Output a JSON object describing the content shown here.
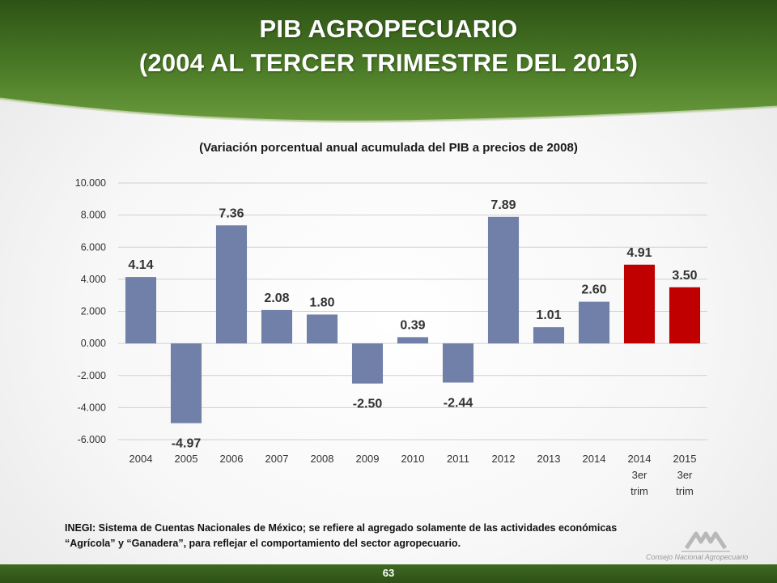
{
  "slide": {
    "title_line_1": "PIB AGROPECUARIO",
    "title_line_2": "(2004 AL TERCER TRIMESTRE DEL 2015)",
    "source_line_1": "INEGI: Sistema de Cuentas Nacionales de México; se refiere al agregado solamente de las actividades económicas",
    "source_line_2": "“Agrícola” y “Ganadera”, para reflejar el comportamiento del sector agropecuario.",
    "page_number": "63",
    "header_color": "#3d6b1f",
    "logo_icon": "consejo-logo-icon",
    "logo_text": "Consejo Nacional Agropecuario"
  },
  "chart_data": {
    "type": "bar",
    "title": "(Variación porcentual anual acumulada del PIB a precios de 2008)",
    "xlabel": "",
    "ylabel": "",
    "categories": [
      [
        "2004"
      ],
      [
        "2005"
      ],
      [
        "2006"
      ],
      [
        "2007"
      ],
      [
        "2008"
      ],
      [
        "2009"
      ],
      [
        "2010"
      ],
      [
        "2011"
      ],
      [
        "2012"
      ],
      [
        "2013"
      ],
      [
        "2014"
      ],
      [
        "2014",
        "3er",
        "trim"
      ],
      [
        "2015",
        "3er",
        "trim"
      ]
    ],
    "values": [
      4.14,
      -4.97,
      7.36,
      2.08,
      1.8,
      -2.5,
      0.39,
      -2.44,
      7.89,
      1.01,
      2.6,
      4.91,
      3.5
    ],
    "value_labels": [
      "4.14",
      "-4.97",
      "7.36",
      "2.08",
      "1.80",
      "-2.50",
      "0.39",
      "-2.44",
      "7.89",
      "1.01",
      "2.60",
      "4.91",
      "3.50"
    ],
    "bar_colors": [
      "#7180a8",
      "#7180a8",
      "#7180a8",
      "#7180a8",
      "#7180a8",
      "#7180a8",
      "#7180a8",
      "#7180a8",
      "#7180a8",
      "#7180a8",
      "#7180a8",
      "#c00000",
      "#c00000"
    ],
    "ylim": [
      -6,
      10
    ],
    "y_ticks": [
      10,
      8,
      6,
      4,
      2,
      0,
      -2,
      -4,
      -6
    ],
    "y_tick_labels": [
      "10.000",
      "8.000",
      "6.000",
      "4.000",
      "2.000",
      "0.000",
      "-2.000",
      "-4.000",
      "-6.000"
    ],
    "grid": true,
    "legend": "none"
  }
}
